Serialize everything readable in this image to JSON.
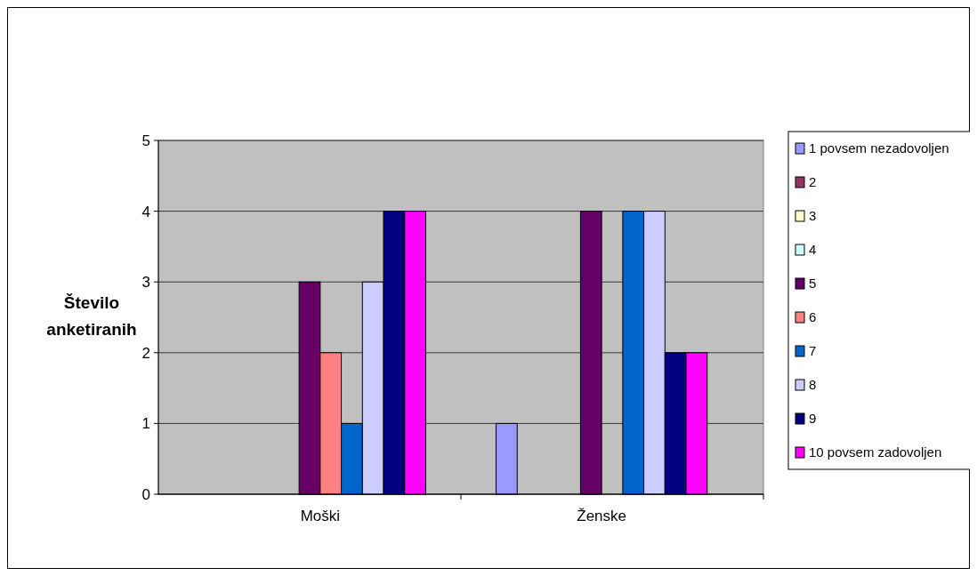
{
  "chart_data": {
    "type": "bar",
    "ylabel": "Število anketiranih",
    "categories": [
      "Moški",
      "Ženske"
    ],
    "series": [
      {
        "name": "1 povsem nezadovoljen",
        "color": "#9999ff",
        "values": [
          0,
          1
        ]
      },
      {
        "name": "2",
        "color": "#993366",
        "values": [
          0,
          0
        ]
      },
      {
        "name": "3",
        "color": "#ffffcc",
        "values": [
          0,
          0
        ]
      },
      {
        "name": "4",
        "color": "#ccffff",
        "values": [
          0,
          0
        ]
      },
      {
        "name": "5",
        "color": "#660066",
        "values": [
          3,
          4
        ]
      },
      {
        "name": "6",
        "color": "#ff8080",
        "values": [
          2,
          0
        ]
      },
      {
        "name": "7",
        "color": "#0066cc",
        "values": [
          1,
          4
        ]
      },
      {
        "name": "8",
        "color": "#ccccff",
        "values": [
          3,
          4
        ]
      },
      {
        "name": "9",
        "color": "#000080",
        "values": [
          4,
          2
        ]
      },
      {
        "name": "10 povsem zadovoljen",
        "color": "#ff00ff",
        "values": [
          4,
          2
        ]
      }
    ],
    "ylim": [
      0,
      5
    ],
    "yticks": [
      0,
      1,
      2,
      3,
      4,
      5
    ],
    "grid": "y",
    "legend": "right"
  }
}
